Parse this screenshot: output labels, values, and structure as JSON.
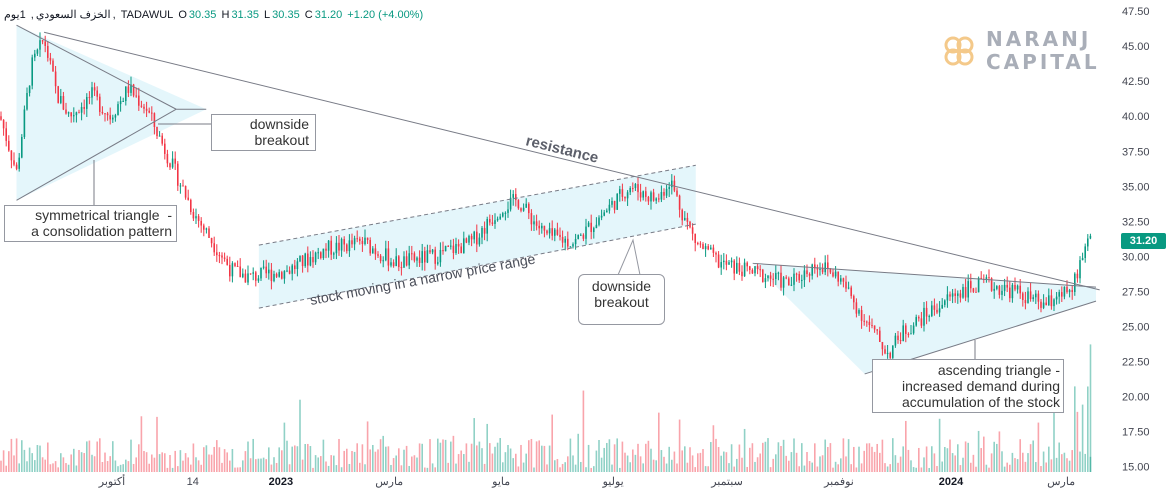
{
  "header": {
    "symbol": "الخزف السعودي",
    "interval": "1يوم",
    "exchange": "TADAWUL",
    "open_label": "O",
    "open": "30.35",
    "high_label": "H",
    "high": "31.35",
    "low_label": "L",
    "low": "30.35",
    "close_label": "C",
    "close": "31.20",
    "change": "+1.20 (+4.00%)"
  },
  "logo": {
    "line1": "NARANJ",
    "line2": "CAPITAL"
  },
  "last_price": "31.20",
  "colors": {
    "up": "#089981",
    "down": "#f23645",
    "pattern_fill": "#e4f6fb",
    "trendline": "#787b86"
  },
  "annotations": {
    "downside_1": "downside\nbreakout",
    "sym_triangle": "symmetrical triangle  -\na consolidation pattern",
    "resistance": "resistance",
    "channel": "stock moving in a narrow price range",
    "downside_2": "downside\nbreakout",
    "asc_triangle": "ascending triangle -\nincreased demand during\naccumulation of the stock"
  },
  "chart_data": {
    "type": "candlestick",
    "title": "",
    "y_axis": {
      "position": "right",
      "ticks": [
        15.0,
        17.5,
        20.0,
        22.5,
        25.0,
        27.5,
        30.0,
        32.5,
        35.0,
        37.5,
        40.0,
        42.5,
        45.0,
        47.5
      ],
      "tick_labels": [
        "15.00",
        "17.50",
        "20.00",
        "22.50",
        "25.00",
        "27.50",
        "30.00",
        "32.50",
        "35.00",
        "37.50",
        "40.00",
        "42.50",
        "45.00",
        "47.50"
      ],
      "ylim": [
        14.6,
        48.3
      ]
    },
    "x_axis": {
      "tick_labels": [
        {
          "label": "أكتوبر",
          "date": "2022-10-01",
          "bold": false
        },
        {
          "label": "14",
          "date": "2022-11-14",
          "bold": false
        },
        {
          "label": "2023",
          "date": "2023-01-01",
          "bold": true
        },
        {
          "label": "مارس",
          "date": "2023-03-01",
          "bold": false
        },
        {
          "label": "مايو",
          "date": "2023-05-01",
          "bold": false
        },
        {
          "label": "يوليو",
          "date": "2023-07-01",
          "bold": false
        },
        {
          "label": "سبتمبر",
          "date": "2023-09-01",
          "bold": false
        },
        {
          "label": "نوفمبر",
          "date": "2023-11-01",
          "bold": false
        },
        {
          "label": "2024",
          "date": "2024-01-01",
          "bold": true
        },
        {
          "label": "مارس",
          "date": "2024-03-01",
          "bold": false
        }
      ]
    },
    "price_path": [
      [
        "2022-08-01",
        40.0
      ],
      [
        "2022-08-10",
        36.0
      ],
      [
        "2022-08-18",
        43.5
      ],
      [
        "2022-08-25",
        45.5
      ],
      [
        "2022-09-01",
        41.5
      ],
      [
        "2022-09-08",
        40.0
      ],
      [
        "2022-09-20",
        41.5
      ],
      [
        "2022-09-30",
        40.0
      ],
      [
        "2022-10-10",
        42.0
      ],
      [
        "2022-10-20",
        40.5
      ],
      [
        "2022-11-01",
        37.0
      ],
      [
        "2022-11-15",
        33.0
      ],
      [
        "2022-11-25",
        31.0
      ],
      [
        "2022-12-05",
        29.0
      ],
      [
        "2022-12-15",
        28.5
      ],
      [
        "2023-01-05",
        29.0
      ],
      [
        "2023-01-25",
        30.5
      ],
      [
        "2023-02-15",
        31.0
      ],
      [
        "2023-03-05",
        29.5
      ],
      [
        "2023-03-25",
        30.0
      ],
      [
        "2023-04-15",
        31.0
      ],
      [
        "2023-05-01",
        33.5
      ],
      [
        "2023-05-10",
        34.0
      ],
      [
        "2023-05-25",
        31.5
      ],
      [
        "2023-06-10",
        31.0
      ],
      [
        "2023-06-25",
        33.0
      ],
      [
        "2023-07-10",
        35.0
      ],
      [
        "2023-07-25",
        34.0
      ],
      [
        "2023-08-01",
        35.5
      ],
      [
        "2023-08-08",
        33.0
      ],
      [
        "2023-08-15",
        31.0
      ],
      [
        "2023-08-28",
        29.5
      ],
      [
        "2023-09-10",
        29.0
      ],
      [
        "2023-09-25",
        28.5
      ],
      [
        "2023-10-05",
        28.0
      ],
      [
        "2023-10-20",
        29.5
      ],
      [
        "2023-11-01",
        28.5
      ],
      [
        "2023-11-15",
        25.5
      ],
      [
        "2023-11-28",
        23.0
      ],
      [
        "2023-12-05",
        24.5
      ],
      [
        "2023-12-20",
        26.0
      ],
      [
        "2024-01-05",
        27.5
      ],
      [
        "2024-01-20",
        28.0
      ],
      [
        "2024-02-05",
        27.5
      ],
      [
        "2024-02-20",
        26.5
      ],
      [
        "2024-03-01",
        27.0
      ],
      [
        "2024-03-08",
        28.0
      ],
      [
        "2024-03-13",
        30.0
      ],
      [
        "2024-03-17",
        31.2
      ]
    ],
    "trendlines": [
      {
        "name": "resistance",
        "from": [
          "2022-08-25",
          46.0
        ],
        "to": [
          "2024-03-22",
          27.6
        ]
      },
      {
        "name": "sym_triangle_upper",
        "from": [
          "2022-08-10",
          46.5
        ],
        "to": [
          "2022-11-05",
          40.5
        ]
      },
      {
        "name": "sym_triangle_lower",
        "from": [
          "2022-08-10",
          34.0
        ],
        "to": [
          "2022-11-05",
          40.5
        ]
      },
      {
        "name": "channel_upper",
        "from": [
          "2022-12-20",
          30.8
        ],
        "to": [
          "2023-08-15",
          36.5
        ]
      },
      {
        "name": "channel_lower",
        "from": [
          "2022-12-20",
          26.3
        ],
        "to": [
          "2023-08-15",
          32.3
        ]
      },
      {
        "name": "asc_triangle_upper",
        "from": [
          "2023-09-15",
          29.5
        ],
        "to": [
          "2024-03-20",
          27.8
        ]
      },
      {
        "name": "asc_triangle_lower",
        "from": [
          "2023-11-15",
          21.6
        ],
        "to": [
          "2024-03-20",
          26.8
        ]
      }
    ],
    "volume": {
      "shown": true,
      "axis_labels": false,
      "max_bar_fraction": 0.58,
      "last_bar_fraction": 0.58
    },
    "grid": false,
    "legend": "none"
  }
}
